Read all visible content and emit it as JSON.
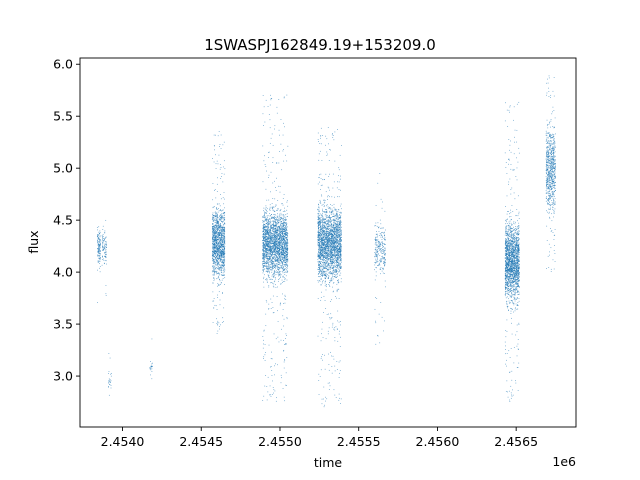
{
  "chart_data": {
    "type": "scatter",
    "title": "1SWASPJ162849.19+153209.0",
    "xlabel": "time",
    "ylabel": "flux",
    "x_offset_label": "1e6",
    "x_ticks": [
      {
        "value": 2.454,
        "label": "2.4540"
      },
      {
        "value": 2.4545,
        "label": "2.4545"
      },
      {
        "value": 2.455,
        "label": "2.4550"
      },
      {
        "value": 2.4555,
        "label": "2.4555"
      },
      {
        "value": 2.456,
        "label": "2.4560"
      },
      {
        "value": 2.4565,
        "label": "2.4565"
      }
    ],
    "y_ticks": [
      {
        "value": 3.0,
        "label": "3.0"
      },
      {
        "value": 3.5,
        "label": "3.5"
      },
      {
        "value": 4.0,
        "label": "4.0"
      },
      {
        "value": 4.5,
        "label": "4.5"
      },
      {
        "value": 5.0,
        "label": "5.0"
      },
      {
        "value": 5.5,
        "label": "5.5"
      },
      {
        "value": 6.0,
        "label": "6.0"
      }
    ],
    "xlim": [
      2.45373,
      2.45688
    ],
    "ylim": [
      2.51,
      6.06
    ],
    "grid": false,
    "marker_color": "#1f77b4",
    "seasons": [
      {
        "x": [
          2.45384,
          2.45386
        ],
        "core": [
          3.95,
          4.5
        ],
        "full": [
          3.6,
          4.82
        ],
        "count": 120
      },
      {
        "x": [
          2.45387,
          2.4539
        ],
        "core": [
          4.0,
          4.5
        ],
        "full": [
          3.7,
          4.65
        ],
        "count": 90
      },
      {
        "x": [
          2.45391,
          2.45393
        ],
        "core": [
          2.85,
          3.1
        ],
        "full": [
          2.75,
          3.3
        ],
        "count": 25
      },
      {
        "x": [
          2.45417,
          2.45419
        ],
        "core": [
          2.95,
          3.2
        ],
        "full": [
          2.88,
          3.36
        ],
        "count": 20
      },
      {
        "x": [
          2.45457,
          2.45465
        ],
        "core": [
          3.8,
          4.75
        ],
        "full": [
          3.4,
          5.38
        ],
        "count": 1300
      },
      {
        "x": [
          2.45489,
          2.45505
        ],
        "core": [
          3.8,
          4.75
        ],
        "full": [
          2.75,
          5.72
        ],
        "count": 2400
      },
      {
        "x": [
          2.45524,
          2.45539
        ],
        "core": [
          3.75,
          4.8
        ],
        "full": [
          2.7,
          5.4
        ],
        "count": 2400
      },
      {
        "x": [
          2.4556,
          2.45567
        ],
        "core": [
          3.85,
          4.6
        ],
        "full": [
          3.3,
          4.95
        ],
        "count": 260
      },
      {
        "x": [
          2.45643,
          2.45652
        ],
        "core": [
          3.55,
          4.65
        ],
        "full": [
          2.7,
          5.65
        ],
        "count": 1800
      },
      {
        "x": [
          2.45669,
          2.45675
        ],
        "core": [
          4.4,
          5.6
        ],
        "full": [
          4.0,
          5.9
        ],
        "count": 700
      }
    ]
  }
}
